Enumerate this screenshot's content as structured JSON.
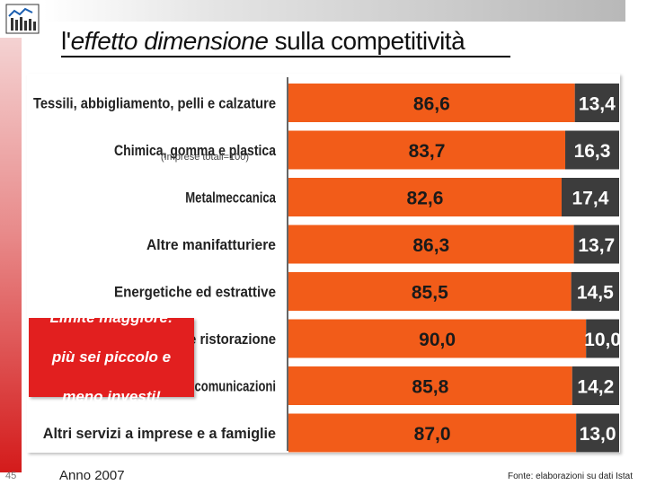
{
  "slide": {
    "title_pre": "l'",
    "title_italic": "effetto dimensione",
    "title_post": " sulla competitività",
    "slide_number": "45",
    "year_label": "Anno 2007",
    "source": "Fonte: elaborazioni su dati Istat",
    "overlap_label": "(Imprese totali=100)",
    "callout_line1": "Limite maggiore:",
    "callout_line2": "più sei piccolo e",
    "callout_line3": "meno investi!"
  },
  "colors": {
    "orange": "#f25c19",
    "dark": "#3c3c3c",
    "red": "#e21f1f"
  },
  "chart_data": {
    "type": "bar",
    "orientation": "horizontal",
    "stacked": true,
    "categories": [
      "Tessili, abbigliamento, pelli e calzature",
      "Chimica, gomma e plastica",
      "Metalmeccanica",
      "Altre manifatturiere",
      "Energetiche ed estrattive",
      "Commercio, trasporti e ristorazione",
      "Intermediazione monetaria e comunicazioni",
      "Altri servizi a imprese e a famiglie"
    ],
    "series": [
      {
        "name": "",
        "values": [
          86.6,
          83.7,
          82.6,
          86.3,
          85.5,
          90.0,
          85.8,
          87.0
        ],
        "labels": [
          "86,6",
          "83,7",
          "82,6",
          "86,3",
          "85,5",
          "90,0",
          "85,8",
          "87,0"
        ]
      },
      {
        "name": "",
        "values": [
          13.4,
          16.3,
          17.4,
          13.7,
          14.5,
          10.0,
          14.2,
          13.0
        ],
        "labels": [
          "13,4",
          "16,3",
          "17,4",
          "13,7",
          "14,5",
          "10,0",
          "14,2",
          "13,0"
        ]
      }
    ],
    "xlim": [
      0,
      100
    ],
    "title": "",
    "xlabel": "",
    "ylabel": ""
  }
}
